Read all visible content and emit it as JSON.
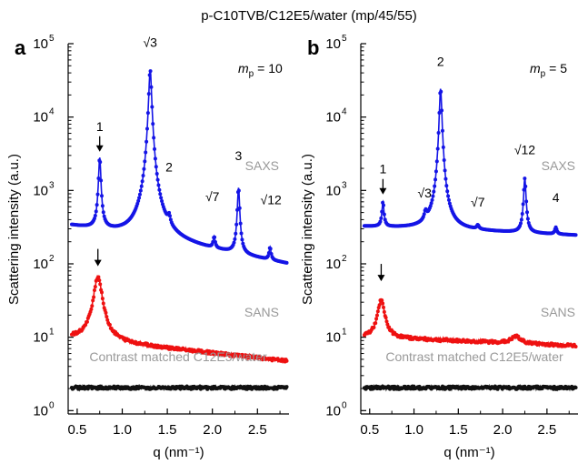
{
  "figure_title": "p-C10TVB/C12E5/water (mp/45/55)",
  "colors": {
    "saxs": "#1414e6",
    "sans": "#ee1111",
    "matched": "#111111",
    "label_gray": "#999999",
    "axis": "#000000"
  },
  "chart_data": [
    {
      "type": "line",
      "panel_label": "a",
      "annotation_mp": "= 10",
      "xlabel": "q (nm⁻¹)",
      "ylabel": "Scattering intensity (a.u.)",
      "yscale": "log",
      "xlim": [
        0.4,
        2.85
      ],
      "ylim": [
        0.9,
        100000
      ],
      "xticks": [
        0.5,
        1.0,
        1.5,
        2.0,
        2.5
      ],
      "xtick_labels": [
        "0.5",
        "1.0",
        "1.5",
        "2.0",
        "2.5"
      ],
      "yticks": [
        1,
        10,
        100,
        1000,
        10000,
        100000
      ],
      "curve_labels": [
        "SAXS",
        "SANS",
        "Contrast matched C12E5/water"
      ],
      "peak_labels": [
        {
          "text": "1",
          "q": 0.75,
          "y": 6500,
          "arrow": true
        },
        {
          "text": "√3",
          "q": 1.31,
          "y": 90000,
          "arrow": false
        },
        {
          "text": "2",
          "q": 1.52,
          "y": 1800,
          "arrow": false
        },
        {
          "text": "√7",
          "q": 2.0,
          "y": 720,
          "arrow": false
        },
        {
          "text": "3",
          "q": 2.29,
          "y": 2600,
          "arrow": false
        },
        {
          "text": "√12",
          "q": 2.65,
          "y": 650,
          "arrow": false
        },
        {
          "text": "↓",
          "q": 0.73,
          "y": 120,
          "arrow": true
        }
      ],
      "series": [
        {
          "name": "SAXS",
          "baseline": 320,
          "slope": -0.22,
          "peaks": [
            {
              "q": 0.75,
              "height": 2500,
              "width": 0.012
            },
            {
              "q": 1.31,
              "height": 44000,
              "width": 0.014
            },
            {
              "q": 1.52,
              "height": 110,
              "width": 0.015
            },
            {
              "q": 2.02,
              "height": 70,
              "width": 0.012
            },
            {
              "q": 2.29,
              "height": 950,
              "width": 0.012
            },
            {
              "q": 2.64,
              "height": 55,
              "width": 0.012
            }
          ]
        },
        {
          "name": "SANS",
          "baseline": 9.5,
          "slope": -0.13,
          "peaks": [
            {
              "q": 0.73,
              "height": 58,
              "width": 0.045
            }
          ]
        },
        {
          "name": "Contrast matched C12E5/water",
          "baseline": 2.05,
          "slope": 0,
          "peaks": []
        }
      ]
    },
    {
      "type": "line",
      "panel_label": "b",
      "annotation_mp": "= 5",
      "xlabel": "q (nm⁻¹)",
      "ylabel": "Scattering intensity (a.u.)",
      "yscale": "log",
      "xlim": [
        0.4,
        2.85
      ],
      "ylim": [
        0.9,
        100000
      ],
      "xticks": [
        0.5,
        1.0,
        1.5,
        2.0,
        2.5
      ],
      "xtick_labels": [
        "0.5",
        "1.0",
        "1.5",
        "2.0",
        "2.5"
      ],
      "yticks": [
        1,
        10,
        100,
        1000,
        10000,
        100000
      ],
      "curve_labels": [
        "SAXS",
        "SANS",
        "Contrast matched C12E5/water"
      ],
      "peak_labels": [
        {
          "text": "1",
          "q": 0.65,
          "y": 1700,
          "arrow": true
        },
        {
          "text": "2",
          "q": 1.3,
          "y": 50000,
          "arrow": false
        },
        {
          "text": "√3",
          "q": 1.12,
          "y": 800,
          "arrow": false
        },
        {
          "text": "√7",
          "q": 1.72,
          "y": 600,
          "arrow": false
        },
        {
          "text": "√12",
          "q": 2.25,
          "y": 3100,
          "arrow": false
        },
        {
          "text": "4",
          "q": 2.6,
          "y": 700,
          "arrow": false
        },
        {
          "text": "↓",
          "q": 0.63,
          "y": 75,
          "arrow": true
        }
      ],
      "series": [
        {
          "name": "SAXS",
          "baseline": 320,
          "slope": -0.05,
          "peaks": [
            {
              "q": 0.65,
              "height": 380,
              "width": 0.012
            },
            {
              "q": 1.13,
              "height": 120,
              "width": 0.015
            },
            {
              "q": 1.3,
              "height": 24000,
              "width": 0.013
            },
            {
              "q": 1.72,
              "height": 40,
              "width": 0.015
            },
            {
              "q": 2.25,
              "height": 1200,
              "width": 0.013
            },
            {
              "q": 2.6,
              "height": 60,
              "width": 0.013
            }
          ]
        },
        {
          "name": "SANS",
          "baseline": 10,
          "slope": -0.05,
          "peaks": [
            {
              "q": 0.63,
              "height": 22,
              "width": 0.04
            },
            {
              "q": 2.15,
              "height": 2,
              "width": 0.06
            }
          ]
        },
        {
          "name": "Contrast matched C12E5/water",
          "baseline": 2.05,
          "slope": 0,
          "peaks": []
        }
      ]
    }
  ]
}
